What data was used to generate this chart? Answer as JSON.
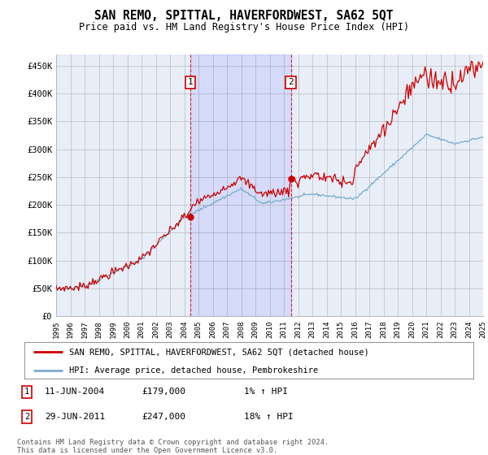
{
  "title": "SAN REMO, SPITTAL, HAVERFORDWEST, SA62 5QT",
  "subtitle": "Price paid vs. HM Land Registry's House Price Index (HPI)",
  "ylim": [
    0,
    470000
  ],
  "yticks": [
    0,
    50000,
    100000,
    150000,
    200000,
    250000,
    300000,
    350000,
    400000,
    450000
  ],
  "x_start_year": 1995,
  "x_end_year": 2025,
  "sale1_date": 2004.44,
  "sale1_price": 179000,
  "sale2_date": 2011.49,
  "sale2_price": 247000,
  "red_line_color": "#cc0000",
  "blue_line_color": "#7aaacc",
  "background_color": "#e8eef8",
  "grid_color": "#bbbbbb",
  "legend_line1": "SAN REMO, SPITTAL, HAVERFORDWEST, SA62 5QT (detached house)",
  "legend_line2": "HPI: Average price, detached house, Pembrokeshire",
  "note1_date": "11-JUN-2004",
  "note1_price": "£179,000",
  "note1_hpi": "1% ↑ HPI",
  "note2_date": "29-JUN-2011",
  "note2_price": "£247,000",
  "note2_hpi": "18% ↑ HPI",
  "footer": "Contains HM Land Registry data © Crown copyright and database right 2024.\nThis data is licensed under the Open Government Licence v3.0."
}
